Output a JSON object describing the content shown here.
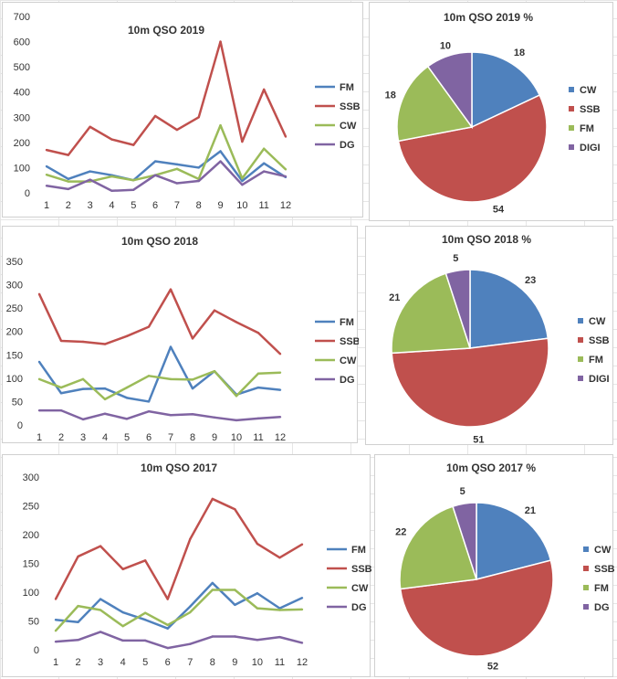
{
  "colors": {
    "FM": "#4f81bd",
    "SSB": "#c0504d",
    "CW": "#9bbb59",
    "DG": "#8064a2"
  },
  "charts": [
    {
      "id": "line-2019",
      "chart_data": {
        "type": "line",
        "title": "10m QSO 2019",
        "categories": [
          "1",
          "2",
          "3",
          "4",
          "5",
          "6",
          "7",
          "8",
          "9",
          "10",
          "11",
          "12"
        ],
        "yticks": [
          "0",
          "100",
          "200",
          "300",
          "400",
          "500",
          "600",
          "700"
        ],
        "ylim": [
          0,
          700
        ],
        "series": [
          {
            "name": "FM",
            "color": "#4f81bd",
            "values": [
              105,
              55,
              85,
              70,
              50,
              125,
              113,
              100,
              165,
              47,
              117,
              62
            ]
          },
          {
            "name": "SSB",
            "color": "#c0504d",
            "values": [
              170,
              150,
              262,
              212,
              190,
              305,
              250,
              300,
              600,
              203,
              410,
              223
            ]
          },
          {
            "name": "CW",
            "color": "#9bbb59",
            "values": [
              72,
              45,
              45,
              65,
              50,
              70,
              95,
              55,
              268,
              57,
              175,
              93
            ]
          },
          {
            "name": "DG",
            "color": "#8064a2",
            "values": [
              28,
              15,
              52,
              8,
              12,
              70,
              38,
              47,
              125,
              32,
              85,
              65
            ]
          }
        ],
        "legend": "right"
      }
    },
    {
      "id": "pie-2019",
      "chart_data": {
        "type": "pie",
        "title": "10m QSO 2019 %",
        "slices": [
          {
            "name": "CW",
            "color": "#4f81bd",
            "value": 18,
            "label": "18"
          },
          {
            "name": "SSB",
            "color": "#c0504d",
            "value": 54,
            "label": "54"
          },
          {
            "name": "FM",
            "color": "#9bbb59",
            "value": 18,
            "label": "18"
          },
          {
            "name": "DIGI",
            "color": "#8064a2",
            "value": 10,
            "label": "10"
          }
        ],
        "legend": "right"
      }
    },
    {
      "id": "line-2018",
      "chart_data": {
        "type": "line",
        "title": "10m QSO 2018",
        "categories": [
          "1",
          "2",
          "3",
          "4",
          "5",
          "6",
          "7",
          "8",
          "9",
          "10",
          "11",
          "12"
        ],
        "yticks": [
          "0",
          "50",
          "100",
          "150",
          "200",
          "250",
          "300",
          "350"
        ],
        "ylim": [
          0,
          350
        ],
        "series": [
          {
            "name": "FM",
            "color": "#4f81bd",
            "values": [
              135,
              68,
              77,
              78,
              58,
              50,
              167,
              78,
              115,
              65,
              80,
              75
            ]
          },
          {
            "name": "SSB",
            "color": "#c0504d",
            "values": [
              280,
              180,
              178,
              173,
              190,
              210,
              290,
              185,
              245,
              220,
              197,
              152
            ]
          },
          {
            "name": "CW",
            "color": "#9bbb59",
            "values": [
              98,
              80,
              98,
              55,
              80,
              105,
              98,
              97,
              115,
              62,
              110,
              112
            ]
          },
          {
            "name": "DG",
            "color": "#8064a2",
            "values": [
              31,
              31,
              12,
              24,
              13,
              29,
              21,
              23,
              16,
              10,
              14,
              17
            ]
          }
        ],
        "legend": "right"
      }
    },
    {
      "id": "pie-2018",
      "chart_data": {
        "type": "pie",
        "title": "10m QSO 2018 %",
        "slices": [
          {
            "name": "CW",
            "color": "#4f81bd",
            "value": 23,
            "label": "23"
          },
          {
            "name": "SSB",
            "color": "#c0504d",
            "value": 51,
            "label": "51"
          },
          {
            "name": "FM",
            "color": "#9bbb59",
            "value": 21,
            "label": "21"
          },
          {
            "name": "DIGI",
            "color": "#8064a2",
            "value": 5,
            "label": "5"
          }
        ],
        "legend": "right"
      }
    },
    {
      "id": "line-2017",
      "chart_data": {
        "type": "line",
        "title": "10m QSO 2017",
        "categories": [
          "1",
          "2",
          "3",
          "4",
          "5",
          "6",
          "7",
          "8",
          "9",
          "10",
          "11",
          "12"
        ],
        "yticks": [
          "0",
          "50",
          "100",
          "150",
          "200",
          "250",
          "300"
        ],
        "ylim": [
          0,
          300
        ],
        "series": [
          {
            "name": "FM",
            "color": "#4f81bd",
            "values": [
              52,
              48,
              88,
              65,
              52,
              37,
              75,
              116,
              78,
              98,
              72,
              90
            ]
          },
          {
            "name": "SSB",
            "color": "#c0504d",
            "values": [
              88,
              162,
              180,
              140,
              155,
              88,
              192,
              262,
              244,
              184,
              160,
              183
            ]
          },
          {
            "name": "CW",
            "color": "#9bbb59",
            "values": [
              33,
              76,
              69,
              41,
              64,
              43,
              65,
              104,
              104,
              72,
              69,
              70
            ]
          },
          {
            "name": "DG",
            "color": "#8064a2",
            "values": [
              14,
              17,
              31,
              16,
              16,
              3,
              10,
              23,
              23,
              17,
              22,
              12
            ]
          }
        ],
        "legend": "right"
      }
    },
    {
      "id": "pie-2017",
      "chart_data": {
        "type": "pie",
        "title": "10m QSO 2017 %",
        "slices": [
          {
            "name": "CW",
            "color": "#4f81bd",
            "value": 21,
            "label": "21"
          },
          {
            "name": "SSB",
            "color": "#c0504d",
            "value": 52,
            "label": "52"
          },
          {
            "name": "FM",
            "color": "#9bbb59",
            "value": 22,
            "label": "22"
          },
          {
            "name": "DG",
            "color": "#8064a2",
            "value": 5,
            "label": "5"
          }
        ],
        "legend": "right"
      }
    }
  ]
}
